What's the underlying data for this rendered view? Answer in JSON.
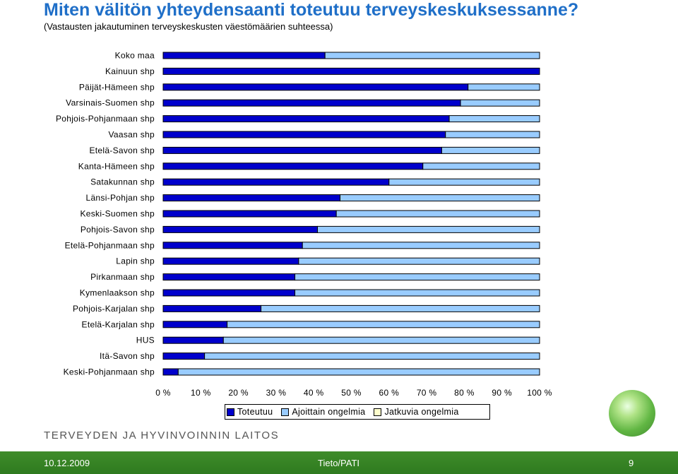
{
  "title": "Miten välitön yhteydensaanti toteutuu terveyskeskuksessanne?",
  "subtitle": "(Vastausten jakautuminen terveyskeskusten väestömäärien suhteessa)",
  "colors": {
    "toteutuu": "#0000cc",
    "ajoittain": "#99ccff",
    "jatkuvia": "#ffffcc",
    "title": "#1f6fc8",
    "footer": "#3a8a26"
  },
  "chart_data": {
    "type": "bar",
    "orientation": "horizontal",
    "stacked": "percent",
    "categories": [
      "Koko maa",
      "Kainuun shp",
      "Päijät-Hämeen shp",
      "Varsinais-Suomen shp",
      "Pohjois-Pohjanmaan shp",
      "Vaasan shp",
      "Etelä-Savon shp",
      "Kanta-Hämeen shp",
      "Satakunnan shp",
      "Länsi-Pohjan shp",
      "Keski-Suomen shp",
      "Pohjois-Savon shp",
      "Etelä-Pohjanmaan shp",
      "Lapin shp",
      "Pirkanmaan shp",
      "Kymenlaakson shp",
      "Pohjois-Karjalan shp",
      "Etelä-Karjalan shp",
      "HUS",
      "Itä-Savon shp",
      "Keski-Pohjanmaan shp"
    ],
    "series": [
      {
        "name": "Toteutuu",
        "values": [
          43,
          100,
          81,
          79,
          76,
          75,
          74,
          69,
          60,
          47,
          46,
          41,
          37,
          36,
          35,
          35,
          26,
          17,
          16,
          11,
          4
        ]
      },
      {
        "name": "Ajoittain ongelmia",
        "values": [
          57,
          0,
          19,
          21,
          24,
          25,
          26,
          31,
          40,
          53,
          54,
          59,
          63,
          64,
          65,
          65,
          74,
          83,
          84,
          89,
          96
        ]
      },
      {
        "name": "Jatkuvia ongelmia",
        "values": [
          0,
          0,
          0,
          0,
          0,
          0,
          0,
          0,
          0,
          0,
          0,
          0,
          0,
          0,
          0,
          0,
          0,
          0,
          0,
          0,
          0
        ]
      }
    ],
    "xlim": [
      0,
      100
    ],
    "xticks": [
      "0 %",
      "10 %",
      "20 %",
      "30 %",
      "40 %",
      "50 %",
      "60 %",
      "70 %",
      "80 %",
      "90 %",
      "100 %"
    ],
    "legend_placement": "bottom",
    "grid": false
  },
  "footer": {
    "org": "TERVEYDEN JA HYVINVOINNIN LAITOS",
    "date": "10.12.2009",
    "center": "Tieto/PATI",
    "page": "9"
  }
}
